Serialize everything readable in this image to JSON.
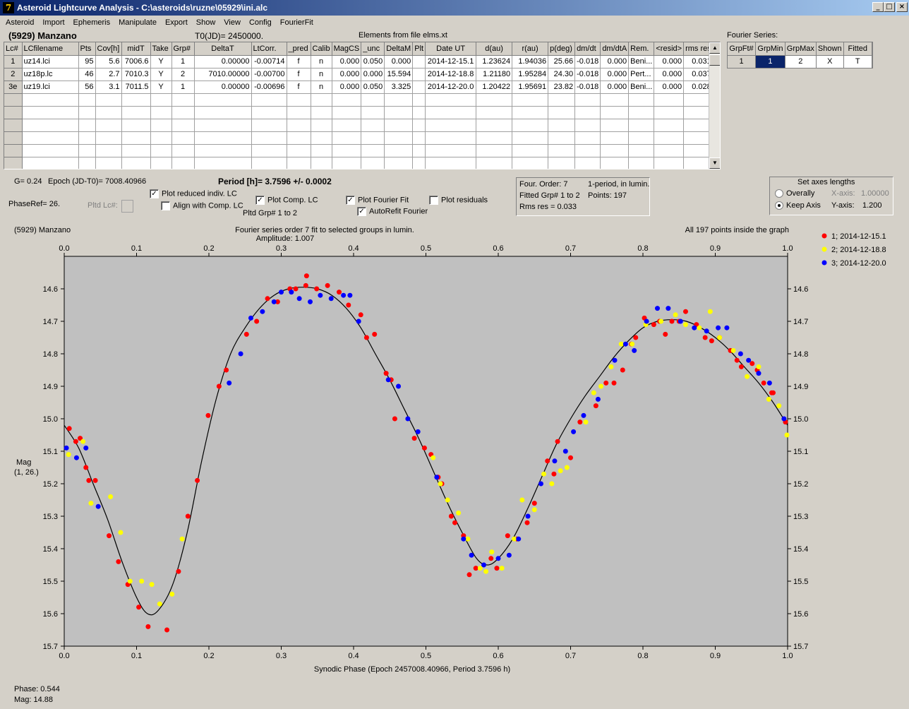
{
  "window": {
    "title": "Asteroid Lightcurve Analysis - C:\\asteroids\\ruzne\\05929\\ini.alc",
    "icon_glyph": "7",
    "min_label": "_",
    "max_label": "□",
    "close_label": "×"
  },
  "menu": [
    "Asteroid",
    "Import",
    "Ephemeris",
    "Manipulate",
    "Export",
    "Show",
    "View",
    "Config",
    "FourierFit"
  ],
  "header": {
    "object": "(5929) Manzano",
    "t0": "T0(JD)= 2450000.",
    "elements": "Elements from file elms.xt",
    "fourier_title": "Fourier Series:"
  },
  "grid": {
    "columns": [
      "Lc#",
      "LCfilename",
      "Pts",
      "Cov[h]",
      "midT",
      "Take",
      "Grp#",
      "DeltaT",
      "LtCorr.",
      "_pred",
      "Calib",
      "MagCS",
      "_unc",
      "DeltaM",
      "Plt",
      "Date UT",
      "d(au)",
      "r(au)",
      "p(deg)",
      "dm/dt",
      "dm/dtA",
      "Rem.",
      "<resid>",
      "rms res"
    ],
    "rows": [
      [
        "1",
        "uz14.lci",
        "95",
        "5.6",
        "7006.6",
        "Y",
        "1",
        "0.00000",
        "-0.00714",
        "f",
        "n",
        "0.000",
        "0.050",
        "0.000",
        "",
        "2014-12-15.1",
        "1.23624",
        "1.94036",
        "25.66",
        "-0.018",
        "0.000",
        "Beni...",
        "0.000",
        "0.031"
      ],
      [
        "2",
        "uz18p.lc",
        "46",
        "2.7",
        "7010.3",
        "Y",
        "2",
        "7010.00000",
        "-0.00700",
        "f",
        "n",
        "0.000",
        "0.000",
        "15.594",
        "",
        "2014-12-18.8",
        "1.21180",
        "1.95284",
        "24.30",
        "-0.018",
        "0.000",
        "Pert...",
        "0.000",
        "0.037"
      ],
      [
        "3e",
        "uz19.lci",
        "56",
        "3.1",
        "7011.5",
        "Y",
        "1",
        "0.00000",
        "-0.00696",
        "f",
        "n",
        "0.000",
        "0.050",
        "3.325",
        "",
        "2014-12-20.0",
        "1.20422",
        "1.95691",
        "23.82",
        "-0.018",
        "0.000",
        "Beni...",
        "0.000",
        "0.028"
      ]
    ],
    "scroll_up": "▲",
    "scroll_down": "▼"
  },
  "fourier_grid": {
    "columns": [
      "GrpFt#",
      "GrpMin",
      "GrpMax",
      "Shown",
      "Fitted"
    ],
    "row": [
      "1",
      "1",
      "2",
      "X",
      "T"
    ]
  },
  "info": {
    "g": "G= 0.24",
    "epoch": "Epoch (JD-T0)= 7008.40966",
    "period": "Period [h]= 3.7596 +/- 0.0002",
    "phaseref": "PhaseRef= 26.",
    "pltd_lc": "Pltd Lc#:",
    "plot_reduced": "Plot reduced indiv. LC",
    "align_comp": "Align with Comp. LC",
    "plot_comp": "Plot Comp. LC",
    "pltd_grp": "Pltd Grp#  1   to   2",
    "plot_fourier": "Plot Fourier Fit",
    "autorefit": "AutoRefit Fourier",
    "plot_residuals": "Plot residuals",
    "check_mark": "✓",
    "four_order": "Four. Order:  7",
    "one_period": "1-period, in lumin.",
    "fitted_grp": "Fitted Grp# 1 to 2",
    "points": "Points: 197",
    "rms_res": "Rms res     = 0.033",
    "axes_title": "Set axes lengths",
    "overally": "Overally",
    "keep_axis": "Keep Axis",
    "x_axis_label": "X-axis:",
    "x_axis_val": "1.00000",
    "y_axis_label": "Y-axis:",
    "y_axis_val": "1.200"
  },
  "plot": {
    "object": "(5929) Manzano",
    "subtitle1": "Fourier series order 7 fit to selected groups in lumin.",
    "subtitle2": "Amplitude: 1.007",
    "inside": "All 197 points inside the graph",
    "ylabel1": "Mag",
    "ylabel2": "(1, 26.)",
    "xlabel": "Synodic Phase (Epoch 2457008.40966, Period 3.7596 h)",
    "bg_color": "#c0c0c0"
  },
  "status": {
    "phase": "Phase:  0.544",
    "mag": "Mag:    14.88"
  },
  "chart_data": {
    "type": "scatter",
    "xlim": [
      0,
      1
    ],
    "ylim": [
      15.7,
      14.5
    ],
    "x_ticks": [
      "0.0",
      "0.1",
      "0.2",
      "0.3",
      "0.4",
      "0.5",
      "0.6",
      "0.7",
      "0.8",
      "0.9",
      "1.0"
    ],
    "y_ticks": [
      "14.6",
      "14.7",
      "14.8",
      "14.9",
      "15.0",
      "15.1",
      "15.2",
      "15.3",
      "15.4",
      "15.5",
      "15.6",
      "15.7"
    ],
    "legend_position": "right",
    "series": [
      {
        "name": "1; 2014-12-15.1",
        "color": "#ff0000",
        "points": [
          [
            0.007,
            15.03
          ],
          [
            0.016,
            15.07
          ],
          [
            0.022,
            15.06
          ],
          [
            0.03,
            15.15
          ],
          [
            0.034,
            15.19
          ],
          [
            0.043,
            15.19
          ],
          [
            0.062,
            15.36
          ],
          [
            0.075,
            15.44
          ],
          [
            0.088,
            15.51
          ],
          [
            0.103,
            15.58
          ],
          [
            0.116,
            15.64
          ],
          [
            0.142,
            15.65
          ],
          [
            0.158,
            15.47
          ],
          [
            0.171,
            15.3
          ],
          [
            0.184,
            15.19
          ],
          [
            0.199,
            14.99
          ],
          [
            0.214,
            14.9
          ],
          [
            0.224,
            14.85
          ],
          [
            0.252,
            14.74
          ],
          [
            0.266,
            14.7
          ],
          [
            0.281,
            14.63
          ],
          [
            0.295,
            14.64
          ],
          [
            0.312,
            14.6
          ],
          [
            0.32,
            14.6
          ],
          [
            0.334,
            14.59
          ],
          [
            0.335,
            14.56
          ],
          [
            0.349,
            14.6
          ],
          [
            0.364,
            14.59
          ],
          [
            0.38,
            14.61
          ],
          [
            0.393,
            14.65
          ],
          [
            0.41,
            14.68
          ],
          [
            0.418,
            14.75
          ],
          [
            0.429,
            14.74
          ],
          [
            0.445,
            14.86
          ],
          [
            0.452,
            14.88
          ],
          [
            0.457,
            15.0
          ],
          [
            0.484,
            15.06
          ],
          [
            0.498,
            15.09
          ],
          [
            0.507,
            15.11
          ],
          [
            0.517,
            15.18
          ],
          [
            0.522,
            15.2
          ],
          [
            0.535,
            15.3
          ],
          [
            0.54,
            15.32
          ],
          [
            0.552,
            15.36
          ],
          [
            0.56,
            15.48
          ],
          [
            0.569,
            15.46
          ],
          [
            0.59,
            15.43
          ],
          [
            0.598,
            15.46
          ],
          [
            0.613,
            15.36
          ],
          [
            0.626,
            15.37
          ],
          [
            0.64,
            15.32
          ],
          [
            0.65,
            15.26
          ],
          [
            0.668,
            15.13
          ],
          [
            0.677,
            15.17
          ],
          [
            0.682,
            15.07
          ],
          [
            0.7,
            15.12
          ],
          [
            0.713,
            15.01
          ],
          [
            0.735,
            14.96
          ],
          [
            0.749,
            14.89
          ],
          [
            0.76,
            14.89
          ],
          [
            0.772,
            14.85
          ],
          [
            0.784,
            14.77
          ],
          [
            0.79,
            14.75
          ],
          [
            0.802,
            14.69
          ],
          [
            0.815,
            14.71
          ],
          [
            0.823,
            14.7
          ],
          [
            0.831,
            14.74
          ],
          [
            0.84,
            14.7
          ],
          [
            0.85,
            14.7
          ],
          [
            0.859,
            14.67
          ],
          [
            0.874,
            14.71
          ],
          [
            0.886,
            14.75
          ],
          [
            0.895,
            14.76
          ],
          [
            0.906,
            14.75
          ],
          [
            0.921,
            14.79
          ],
          [
            0.93,
            14.82
          ],
          [
            0.936,
            14.84
          ],
          [
            0.951,
            14.83
          ],
          [
            0.958,
            14.85
          ],
          [
            0.967,
            14.89
          ],
          [
            0.978,
            14.92
          ],
          [
            0.98,
            14.92
          ],
          [
            0.997,
            15.01
          ]
        ]
      },
      {
        "name": "2; 2014-12-18.8",
        "color": "#ffff00",
        "points": [
          [
            0.006,
            15.11
          ],
          [
            0.026,
            15.07
          ],
          [
            0.037,
            15.26
          ],
          [
            0.064,
            15.24
          ],
          [
            0.078,
            15.35
          ],
          [
            0.091,
            15.5
          ],
          [
            0.107,
            15.5
          ],
          [
            0.121,
            15.51
          ],
          [
            0.132,
            15.57
          ],
          [
            0.149,
            15.54
          ],
          [
            0.163,
            15.37
          ],
          [
            0.51,
            15.12
          ],
          [
            0.52,
            15.2
          ],
          [
            0.53,
            15.25
          ],
          [
            0.545,
            15.29
          ],
          [
            0.558,
            15.37
          ],
          [
            0.575,
            15.46
          ],
          [
            0.583,
            15.47
          ],
          [
            0.591,
            15.41
          ],
          [
            0.605,
            15.46
          ],
          [
            0.622,
            15.37
          ],
          [
            0.633,
            15.25
          ],
          [
            0.65,
            15.28
          ],
          [
            0.663,
            15.17
          ],
          [
            0.674,
            15.2
          ],
          [
            0.686,
            15.16
          ],
          [
            0.695,
            15.15
          ],
          [
            0.721,
            15.01
          ],
          [
            0.732,
            14.92
          ],
          [
            0.742,
            14.9
          ],
          [
            0.756,
            14.84
          ],
          [
            0.77,
            14.77
          ],
          [
            0.785,
            14.77
          ],
          [
            0.804,
            14.71
          ],
          [
            0.825,
            14.7
          ],
          [
            0.845,
            14.68
          ],
          [
            0.859,
            14.71
          ],
          [
            0.878,
            14.72
          ],
          [
            0.893,
            14.67
          ],
          [
            0.906,
            14.75
          ],
          [
            0.925,
            14.79
          ],
          [
            0.944,
            14.87
          ],
          [
            0.96,
            14.84
          ],
          [
            0.974,
            14.94
          ],
          [
            0.988,
            14.96
          ],
          [
            0.999,
            15.05
          ]
        ]
      },
      {
        "name": "3; 2014-12-20.0",
        "color": "#0000ff",
        "points": [
          [
            0.003,
            15.09
          ],
          [
            0.017,
            15.12
          ],
          [
            0.03,
            15.09
          ],
          [
            0.047,
            15.27
          ],
          [
            0.228,
            14.89
          ],
          [
            0.244,
            14.8
          ],
          [
            0.258,
            14.69
          ],
          [
            0.274,
            14.67
          ],
          [
            0.29,
            14.64
          ],
          [
            0.3,
            14.61
          ],
          [
            0.314,
            14.61
          ],
          [
            0.325,
            14.63
          ],
          [
            0.34,
            14.64
          ],
          [
            0.354,
            14.62
          ],
          [
            0.369,
            14.63
          ],
          [
            0.386,
            14.62
          ],
          [
            0.395,
            14.62
          ],
          [
            0.407,
            14.7
          ],
          [
            0.448,
            14.88
          ],
          [
            0.462,
            14.9
          ],
          [
            0.475,
            15.0
          ],
          [
            0.489,
            15.04
          ],
          [
            0.515,
            15.18
          ],
          [
            0.552,
            15.37
          ],
          [
            0.563,
            15.42
          ],
          [
            0.58,
            15.45
          ],
          [
            0.6,
            15.43
          ],
          [
            0.615,
            15.42
          ],
          [
            0.628,
            15.37
          ],
          [
            0.641,
            15.3
          ],
          [
            0.659,
            15.2
          ],
          [
            0.678,
            15.13
          ],
          [
            0.693,
            15.1
          ],
          [
            0.704,
            15.04
          ],
          [
            0.718,
            14.99
          ],
          [
            0.738,
            14.94
          ],
          [
            0.761,
            14.82
          ],
          [
            0.776,
            14.77
          ],
          [
            0.788,
            14.79
          ],
          [
            0.805,
            14.7
          ],
          [
            0.82,
            14.66
          ],
          [
            0.835,
            14.66
          ],
          [
            0.852,
            14.7
          ],
          [
            0.871,
            14.72
          ],
          [
            0.888,
            14.73
          ],
          [
            0.904,
            14.72
          ],
          [
            0.916,
            14.72
          ],
          [
            0.935,
            14.8
          ],
          [
            0.946,
            14.82
          ],
          [
            0.96,
            14.86
          ],
          [
            0.975,
            14.89
          ],
          [
            0.995,
            15.0
          ]
        ]
      }
    ],
    "fit_curve": [
      [
        0.0,
        15.02
      ],
      [
        0.02,
        15.09
      ],
      [
        0.04,
        15.2
      ],
      [
        0.06,
        15.31
      ],
      [
        0.08,
        15.44
      ],
      [
        0.1,
        15.55
      ],
      [
        0.115,
        15.6
      ],
      [
        0.13,
        15.59
      ],
      [
        0.15,
        15.51
      ],
      [
        0.17,
        15.35
      ],
      [
        0.19,
        15.13
      ],
      [
        0.21,
        14.94
      ],
      [
        0.23,
        14.8
      ],
      [
        0.25,
        14.72
      ],
      [
        0.27,
        14.66
      ],
      [
        0.29,
        14.62
      ],
      [
        0.31,
        14.6
      ],
      [
        0.33,
        14.595
      ],
      [
        0.35,
        14.6
      ],
      [
        0.37,
        14.62
      ],
      [
        0.39,
        14.66
      ],
      [
        0.41,
        14.72
      ],
      [
        0.43,
        14.8
      ],
      [
        0.45,
        14.88
      ],
      [
        0.47,
        14.97
      ],
      [
        0.49,
        15.06
      ],
      [
        0.51,
        15.16
      ],
      [
        0.53,
        15.26
      ],
      [
        0.55,
        15.35
      ],
      [
        0.57,
        15.43
      ],
      [
        0.585,
        15.45
      ],
      [
        0.6,
        15.43
      ],
      [
        0.62,
        15.37
      ],
      [
        0.64,
        15.28
      ],
      [
        0.66,
        15.18
      ],
      [
        0.68,
        15.08
      ],
      [
        0.7,
        15.0
      ],
      [
        0.72,
        14.93
      ],
      [
        0.74,
        14.87
      ],
      [
        0.76,
        14.81
      ],
      [
        0.78,
        14.76
      ],
      [
        0.8,
        14.72
      ],
      [
        0.82,
        14.7
      ],
      [
        0.84,
        14.695
      ],
      [
        0.86,
        14.7
      ],
      [
        0.88,
        14.72
      ],
      [
        0.9,
        14.75
      ],
      [
        0.92,
        14.79
      ],
      [
        0.94,
        14.84
      ],
      [
        0.96,
        14.89
      ],
      [
        0.98,
        14.95
      ],
      [
        1.0,
        15.02
      ]
    ]
  }
}
